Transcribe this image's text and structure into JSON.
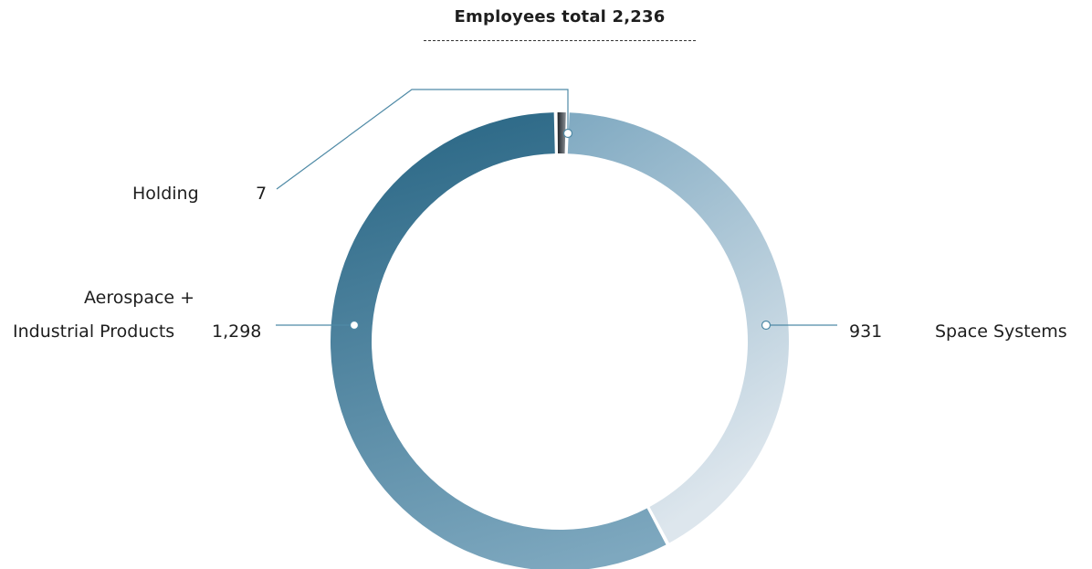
{
  "chart_data": {
    "type": "pie",
    "variant": "donut",
    "title": "Employees total 2,236",
    "slices": [
      {
        "label": "Holding",
        "value": 7,
        "value_label": "7",
        "color": "#3a3f45"
      },
      {
        "label": "Space Systems",
        "value": 931,
        "value_label": "931",
        "color_start": "#7fa9c1",
        "color_end": "#dde6ed"
      },
      {
        "label": "Aerospace + Industrial Products",
        "label_lines": [
          "Aerospace +",
          "Industrial Products"
        ],
        "value": 1298,
        "value_label": "1,298",
        "color_start": "#2e6a88",
        "color_end": "#7ea8bf"
      }
    ],
    "legend": "callout-labels"
  }
}
